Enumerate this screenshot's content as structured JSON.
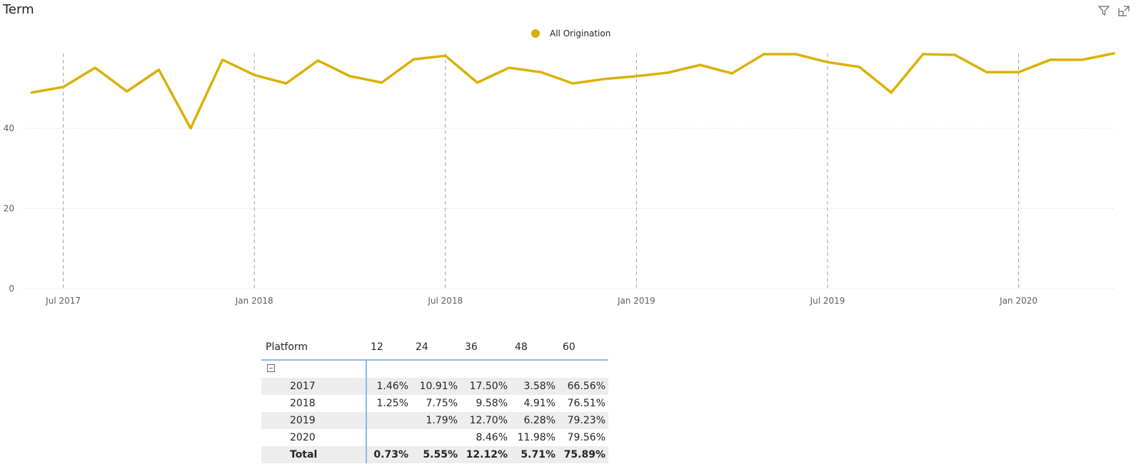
{
  "title": "Term",
  "icons": [
    "filter-icon",
    "focus-mode-icon"
  ],
  "chart_data": {
    "type": "line",
    "title": "Term",
    "legend": {
      "position": "top-center",
      "entries": [
        "All Origination"
      ]
    },
    "color": "#DAB000",
    "x": [
      "2017-06",
      "2017-07",
      "2017-08",
      "2017-09",
      "2017-10",
      "2017-11",
      "2017-12",
      "2018-01",
      "2018-02",
      "2018-03",
      "2018-04",
      "2018-05",
      "2018-06",
      "2018-07",
      "2018-08",
      "2018-09",
      "2018-10",
      "2018-11",
      "2018-12",
      "2019-01",
      "2019-02",
      "2019-03",
      "2019-04",
      "2019-05",
      "2019-06",
      "2019-07",
      "2019-08",
      "2019-09",
      "2019-10",
      "2019-11",
      "2019-12",
      "2020-01",
      "2020-02",
      "2020-03",
      "2020-04"
    ],
    "series": [
      {
        "name": "All Origination",
        "values": [
          48.9,
          50.3,
          55.1,
          49.2,
          54.6,
          40.0,
          57.1,
          53.3,
          51.2,
          56.9,
          53.0,
          51.4,
          57.2,
          58.1,
          51.4,
          55.1,
          54.0,
          51.2,
          52.3,
          53.0,
          53.9,
          55.8,
          53.7,
          58.5,
          58.5,
          56.5,
          55.3,
          48.9,
          58.5,
          58.3,
          54.0,
          54.0,
          57.1,
          57.1,
          58.7
        ]
      }
    ],
    "x_ticks": [
      "Jul 2017",
      "Jan 2018",
      "Jul 2018",
      "Jan 2019",
      "Jul 2019",
      "Jan 2020"
    ],
    "y_ticks": [
      0,
      20,
      40
    ],
    "ylim": [
      0,
      60
    ],
    "grid": true
  },
  "table": {
    "headers": [
      "Platform",
      "12",
      "24",
      "36",
      "48",
      "60"
    ],
    "rows": [
      {
        "label": "2017",
        "values": [
          "1.46%",
          "10.91%",
          "17.50%",
          "3.58%",
          "66.56%"
        ]
      },
      {
        "label": "2018",
        "values": [
          "1.25%",
          "7.75%",
          "9.58%",
          "4.91%",
          "76.51%"
        ]
      },
      {
        "label": "2019",
        "values": [
          "",
          "1.79%",
          "12.70%",
          "6.28%",
          "79.23%"
        ]
      },
      {
        "label": "2020",
        "values": [
          "",
          "",
          "8.46%",
          "11.98%",
          "79.56%"
        ]
      }
    ],
    "total": {
      "label": "Total",
      "values": [
        "0.73%",
        "5.55%",
        "12.12%",
        "5.71%",
        "75.89%"
      ]
    }
  }
}
